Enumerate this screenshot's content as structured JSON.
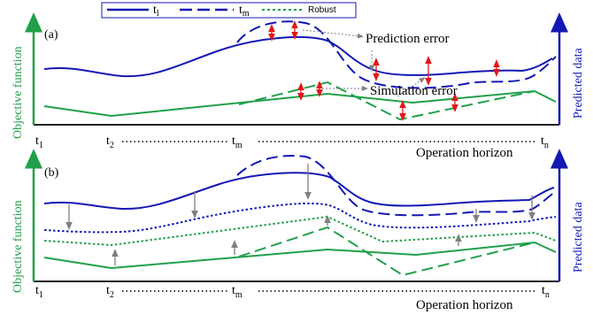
{
  "colors": {
    "blue": "#1418b4",
    "green": "#21a04a",
    "red": "#e01818",
    "gray": "#808080",
    "black": "#000000"
  },
  "legend": {
    "t1_main": "t",
    "t1_sub": "l",
    "tm_main": "t",
    "tm_sub": "m",
    "robust": "Robust"
  },
  "panel_a": {
    "label": "(a)",
    "y_left": "Objective function",
    "y_right": "Predicted data",
    "annotation_prediction": "Prediction error",
    "annotation_simulation": "Simulation error",
    "x_title": "Operation horizon"
  },
  "panel_b": {
    "label": "(b)",
    "y_left": "Objective function",
    "y_right": "Predicted data",
    "x_title": "Operation horizon"
  },
  "ticks": {
    "t1_main": "t",
    "t1_sub": "1",
    "t2_main": "t",
    "t2_sub": "2",
    "tm_main": "t",
    "tm_sub": "m",
    "tn_main": "t",
    "tn_sub": "n"
  }
}
